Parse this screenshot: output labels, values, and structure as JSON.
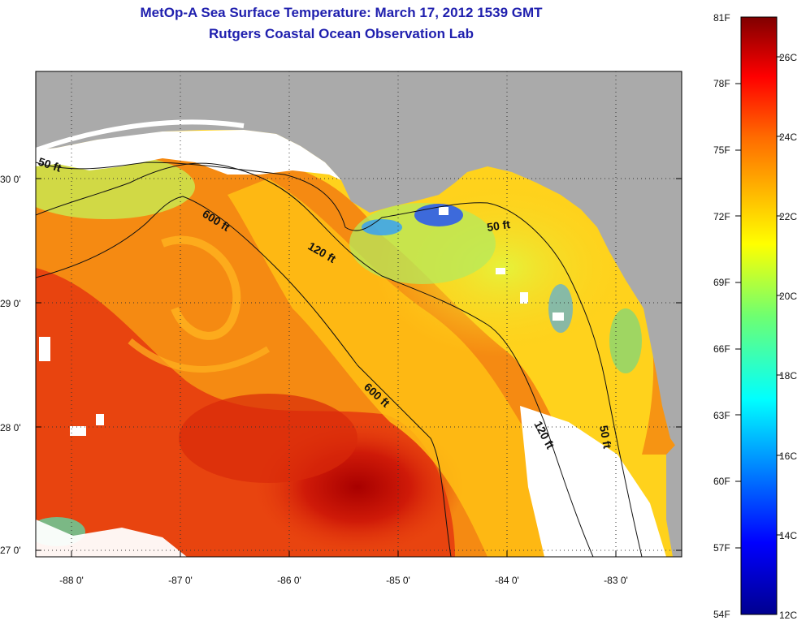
{
  "title": {
    "line1": "MetOp-A Sea Surface Temperature:  March 17, 2012 1539 GMT",
    "line2": "Rutgers Coastal Ocean Observation Lab"
  },
  "colors": {
    "title": "#1f1fae",
    "land": "#aaaaaa",
    "cloud": "#ffffff",
    "contour": "#111111"
  },
  "map": {
    "lat_labels": [
      "30 0'",
      "29 0'",
      "28 0'",
      "27 0'"
    ],
    "lon_labels": [
      "-88 0'",
      "-87 0'",
      "-86 0'",
      "-85 0'",
      "-84 0'",
      "-83 0'"
    ]
  },
  "contours": [
    {
      "label": "50 ft"
    },
    {
      "label": "600 ft"
    },
    {
      "label": "120 ft"
    },
    {
      "label": "50 ft"
    },
    {
      "label": "600 ft"
    },
    {
      "label": "120 ft"
    },
    {
      "label": "50 ft"
    }
  ],
  "colorbar": {
    "f_labels": [
      "81F",
      "78F",
      "75F",
      "72F",
      "69F",
      "66F",
      "63F",
      "60F",
      "57F",
      "54F"
    ],
    "c_labels": [
      "26C",
      "24C",
      "22C",
      "20C",
      "18C",
      "16C",
      "14C",
      "12C"
    ]
  }
}
